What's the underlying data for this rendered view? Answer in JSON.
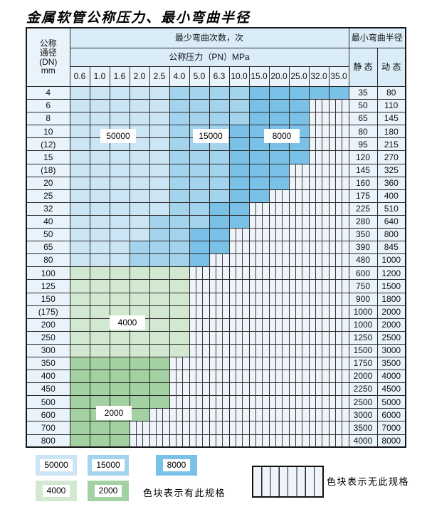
{
  "title": "金属软管公称压力、最小弯曲半径",
  "table": {
    "header": {
      "dn_lines": [
        "公称",
        "通径",
        "(DN)",
        "mm"
      ],
      "cycles_label": "最少弯曲次数，次",
      "radius_label": "最小弯曲半径",
      "pressure_label": "公称压力（PN）MPa",
      "static_label": "静 态",
      "dynamic_label": "动 态",
      "pressures": [
        "0.6",
        "1.0",
        "1.6",
        "2.0",
        "2.5",
        "4.0",
        "5.0",
        "6.3",
        "10.0",
        "15.0",
        "20.0",
        "25.0",
        "32.0",
        "35.0"
      ]
    },
    "category_meaning": {
      "b50": "50000次",
      "b15": "15000次",
      "b8": "8000次",
      "g4": "4000次",
      "g2": "2000次",
      "ns": "无此规格"
    },
    "rows": [
      {
        "dn": "4",
        "cells": [
          "b50",
          "b50",
          "b50",
          "b50",
          "b50",
          "b15",
          "b15",
          "b15",
          "b15",
          "b8",
          "b8",
          "b8",
          "b8",
          "b8"
        ],
        "static": "35",
        "dynamic": "80"
      },
      {
        "dn": "6",
        "cells": [
          "b50",
          "b50",
          "b50",
          "b50",
          "b50",
          "b15",
          "b15",
          "b15",
          "b15",
          "b8",
          "b8",
          "b8",
          "ns",
          "ns"
        ],
        "static": "50",
        "dynamic": "110"
      },
      {
        "dn": "8",
        "cells": [
          "b50",
          "b50",
          "b50",
          "b50",
          "b50",
          "b15",
          "b15",
          "b15",
          "b15",
          "b8",
          "b8",
          "b8",
          "ns",
          "ns"
        ],
        "static": "65",
        "dynamic": "145"
      },
      {
        "dn": "10",
        "cells": [
          "b50",
          "b50",
          "b50",
          "b50",
          "b50",
          "b15",
          "b15",
          "b15",
          "b8",
          "b8",
          "b8",
          "b8",
          "ns",
          "ns"
        ],
        "static": "80",
        "dynamic": "180"
      },
      {
        "dn": "(12)",
        "cells": [
          "b50",
          "b50",
          "b50",
          "b50",
          "b50",
          "b15",
          "b15",
          "b15",
          "b8",
          "b8",
          "b8",
          "b8",
          "ns",
          "ns"
        ],
        "static": "95",
        "dynamic": "215"
      },
      {
        "dn": "15",
        "cells": [
          "b50",
          "b50",
          "b50",
          "b50",
          "b50",
          "b15",
          "b15",
          "b15",
          "b8",
          "b8",
          "b8",
          "b8",
          "ns",
          "ns"
        ],
        "static": "120",
        "dynamic": "270"
      },
      {
        "dn": "(18)",
        "cells": [
          "b50",
          "b50",
          "b50",
          "b50",
          "b50",
          "b15",
          "b15",
          "b15",
          "b8",
          "b8",
          "b8",
          "ns",
          "ns",
          "ns"
        ],
        "static": "145",
        "dynamic": "325"
      },
      {
        "dn": "20",
        "cells": [
          "b50",
          "b50",
          "b50",
          "b50",
          "b50",
          "b15",
          "b15",
          "b15",
          "b8",
          "b8",
          "b8",
          "ns",
          "ns",
          "ns"
        ],
        "static": "160",
        "dynamic": "360"
      },
      {
        "dn": "25",
        "cells": [
          "b50",
          "b50",
          "b50",
          "b50",
          "b50",
          "b15",
          "b15",
          "b15",
          "b8",
          "b8",
          "ns",
          "ns",
          "ns",
          "ns"
        ],
        "static": "175",
        "dynamic": "400"
      },
      {
        "dn": "32",
        "cells": [
          "b50",
          "b50",
          "b50",
          "b50",
          "b50",
          "b15",
          "b15",
          "b8",
          "b8",
          "ns",
          "ns",
          "ns",
          "ns",
          "ns"
        ],
        "static": "225",
        "dynamic": "510"
      },
      {
        "dn": "40",
        "cells": [
          "b50",
          "b50",
          "b50",
          "b50",
          "b15",
          "b15",
          "b15",
          "b8",
          "b8",
          "ns",
          "ns",
          "ns",
          "ns",
          "ns"
        ],
        "static": "280",
        "dynamic": "640"
      },
      {
        "dn": "50",
        "cells": [
          "b50",
          "b50",
          "b50",
          "b50",
          "b15",
          "b15",
          "b8",
          "b8",
          "ns",
          "ns",
          "ns",
          "ns",
          "ns",
          "ns"
        ],
        "static": "350",
        "dynamic": "800"
      },
      {
        "dn": "65",
        "cells": [
          "b50",
          "b50",
          "b50",
          "b15",
          "b15",
          "b15",
          "b8",
          "b8",
          "ns",
          "ns",
          "ns",
          "ns",
          "ns",
          "ns"
        ],
        "static": "390",
        "dynamic": "845"
      },
      {
        "dn": "80",
        "cells": [
          "b50",
          "b50",
          "b50",
          "b15",
          "b15",
          "b15",
          "b8",
          "ns",
          "ns",
          "ns",
          "ns",
          "ns",
          "ns",
          "ns"
        ],
        "static": "480",
        "dynamic": "1000"
      },
      {
        "dn": "100",
        "cells": [
          "g4",
          "g4",
          "g4",
          "g4",
          "g4",
          "g4",
          "ns",
          "ns",
          "ns",
          "ns",
          "ns",
          "ns",
          "ns",
          "ns"
        ],
        "static": "600",
        "dynamic": "1200"
      },
      {
        "dn": "125",
        "cells": [
          "g4",
          "g4",
          "g4",
          "g4",
          "g4",
          "g4",
          "ns",
          "ns",
          "ns",
          "ns",
          "ns",
          "ns",
          "ns",
          "ns"
        ],
        "static": "750",
        "dynamic": "1500"
      },
      {
        "dn": "150",
        "cells": [
          "g4",
          "g4",
          "g4",
          "g4",
          "g4",
          "g4",
          "ns",
          "ns",
          "ns",
          "ns",
          "ns",
          "ns",
          "ns",
          "ns"
        ],
        "static": "900",
        "dynamic": "1800"
      },
      {
        "dn": "(175)",
        "cells": [
          "g4",
          "g4",
          "g4",
          "g4",
          "g4",
          "g4",
          "ns",
          "ns",
          "ns",
          "ns",
          "ns",
          "ns",
          "ns",
          "ns"
        ],
        "static": "1000",
        "dynamic": "2000"
      },
      {
        "dn": "200",
        "cells": [
          "g4",
          "g4",
          "g4",
          "g4",
          "g4",
          "g4",
          "ns",
          "ns",
          "ns",
          "ns",
          "ns",
          "ns",
          "ns",
          "ns"
        ],
        "static": "1000",
        "dynamic": "2000"
      },
      {
        "dn": "250",
        "cells": [
          "g4",
          "g4",
          "g4",
          "g4",
          "g4",
          "g4",
          "ns",
          "ns",
          "ns",
          "ns",
          "ns",
          "ns",
          "ns",
          "ns"
        ],
        "static": "1250",
        "dynamic": "2500"
      },
      {
        "dn": "300",
        "cells": [
          "g4",
          "g4",
          "g4",
          "g4",
          "g4",
          "g4",
          "ns",
          "ns",
          "ns",
          "ns",
          "ns",
          "ns",
          "ns",
          "ns"
        ],
        "static": "1500",
        "dynamic": "3000"
      },
      {
        "dn": "350",
        "cells": [
          "g2",
          "g2",
          "g2",
          "g2",
          "g2",
          "ns",
          "ns",
          "ns",
          "ns",
          "ns",
          "ns",
          "ns",
          "ns",
          "ns"
        ],
        "static": "1750",
        "dynamic": "3500"
      },
      {
        "dn": "400",
        "cells": [
          "g2",
          "g2",
          "g2",
          "g2",
          "g2",
          "ns",
          "ns",
          "ns",
          "ns",
          "ns",
          "ns",
          "ns",
          "ns",
          "ns"
        ],
        "static": "2000",
        "dynamic": "4000"
      },
      {
        "dn": "450",
        "cells": [
          "g2",
          "g2",
          "g2",
          "g2",
          "g2",
          "ns",
          "ns",
          "ns",
          "ns",
          "ns",
          "ns",
          "ns",
          "ns",
          "ns"
        ],
        "static": "2250",
        "dynamic": "4500"
      },
      {
        "dn": "500",
        "cells": [
          "g2",
          "g2",
          "g2",
          "g2",
          "g2",
          "ns",
          "ns",
          "ns",
          "ns",
          "ns",
          "ns",
          "ns",
          "ns",
          "ns"
        ],
        "static": "2500",
        "dynamic": "5000"
      },
      {
        "dn": "600",
        "cells": [
          "g2",
          "g2",
          "g2",
          "g2",
          "ns",
          "ns",
          "ns",
          "ns",
          "ns",
          "ns",
          "ns",
          "ns",
          "ns",
          "ns"
        ],
        "static": "3000",
        "dynamic": "6000"
      },
      {
        "dn": "700",
        "cells": [
          "g2",
          "g2",
          "g2",
          "ns",
          "ns",
          "ns",
          "ns",
          "ns",
          "ns",
          "ns",
          "ns",
          "ns",
          "ns",
          "ns"
        ],
        "static": "3500",
        "dynamic": "7000"
      },
      {
        "dn": "800",
        "cells": [
          "g2",
          "g2",
          "g2",
          "ns",
          "ns",
          "ns",
          "ns",
          "ns",
          "ns",
          "ns",
          "ns",
          "ns",
          "ns",
          "ns"
        ],
        "static": "4000",
        "dynamic": "8000"
      }
    ]
  },
  "band_labels": {
    "b50000": "50000",
    "b15000": "15000",
    "b8000": "8000",
    "b4000": "4000",
    "b2000": "2000"
  },
  "legend": {
    "items": [
      {
        "label": "50000",
        "color_key": "b50"
      },
      {
        "label": "15000",
        "color_key": "b15"
      },
      {
        "label": "8000",
        "color_key": "b8"
      },
      {
        "label": "4000",
        "color_key": "g4"
      },
      {
        "label": "2000",
        "color_key": "g2"
      }
    ],
    "has_spec_text": "色块表示有此规格",
    "no_spec_text": "色块表示无此规格"
  },
  "colors": {
    "b50": "#cbe5f5",
    "b15": "#a4d3ee",
    "b8": "#79c1e7",
    "g4": "#d3e8d0",
    "g2": "#a3d1a2",
    "header_bg": "#d9ecf8",
    "label_cell_bg": "#e9f3fb",
    "ns_bg": "#eef4fa",
    "ns_line": "#3a3a3a"
  }
}
